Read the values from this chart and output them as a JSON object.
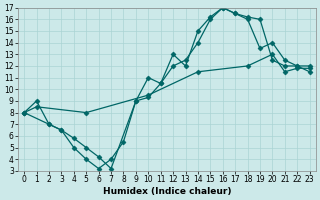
{
  "xlabel": "Humidex (Indice chaleur)",
  "xlim": [
    -0.5,
    23.5
  ],
  "ylim": [
    3,
    17
  ],
  "xticks": [
    0,
    1,
    2,
    3,
    4,
    5,
    6,
    7,
    8,
    9,
    10,
    11,
    12,
    13,
    14,
    15,
    16,
    17,
    18,
    19,
    20,
    21,
    22,
    23
  ],
  "yticks": [
    3,
    4,
    5,
    6,
    7,
    8,
    9,
    10,
    11,
    12,
    13,
    14,
    15,
    16,
    17
  ],
  "bg_color": "#cce9e9",
  "grid_color": "#aad4d4",
  "line_color": "#006666",
  "line1_x": [
    0,
    1,
    2,
    3,
    4,
    5,
    6,
    7,
    8,
    9,
    10,
    11,
    12,
    13,
    14,
    15,
    16,
    17,
    18,
    19,
    20,
    21,
    22,
    23
  ],
  "line1_y": [
    8,
    9,
    7,
    6.5,
    5,
    4,
    3.2,
    4,
    5.5,
    9,
    11,
    10.5,
    13,
    12,
    15,
    16.2,
    17,
    16.5,
    16.2,
    16,
    12.5,
    12,
    12,
    12
  ],
  "line2_x": [
    0,
    2,
    3,
    4,
    5,
    6,
    7,
    9,
    10,
    11,
    12,
    13,
    14,
    15,
    16,
    17,
    18,
    19,
    20,
    21,
    22,
    23
  ],
  "line2_y": [
    8,
    7,
    6.5,
    5.8,
    5.0,
    4.2,
    3.2,
    9,
    9.3,
    10.5,
    12,
    12.5,
    14,
    16,
    17,
    16.5,
    16,
    13.5,
    14,
    12.5,
    12,
    11.5
  ],
  "line3_x": [
    0,
    1,
    5,
    10,
    14,
    18,
    20,
    21,
    22,
    23
  ],
  "line3_y": [
    8,
    8.5,
    8.0,
    9.5,
    11.5,
    12.0,
    13.0,
    11.5,
    11.8,
    11.8
  ],
  "marker": "D",
  "markersize": 2.5,
  "linewidth": 0.9,
  "tick_labelsize": 5.5,
  "xlabel_fontsize": 6.5
}
